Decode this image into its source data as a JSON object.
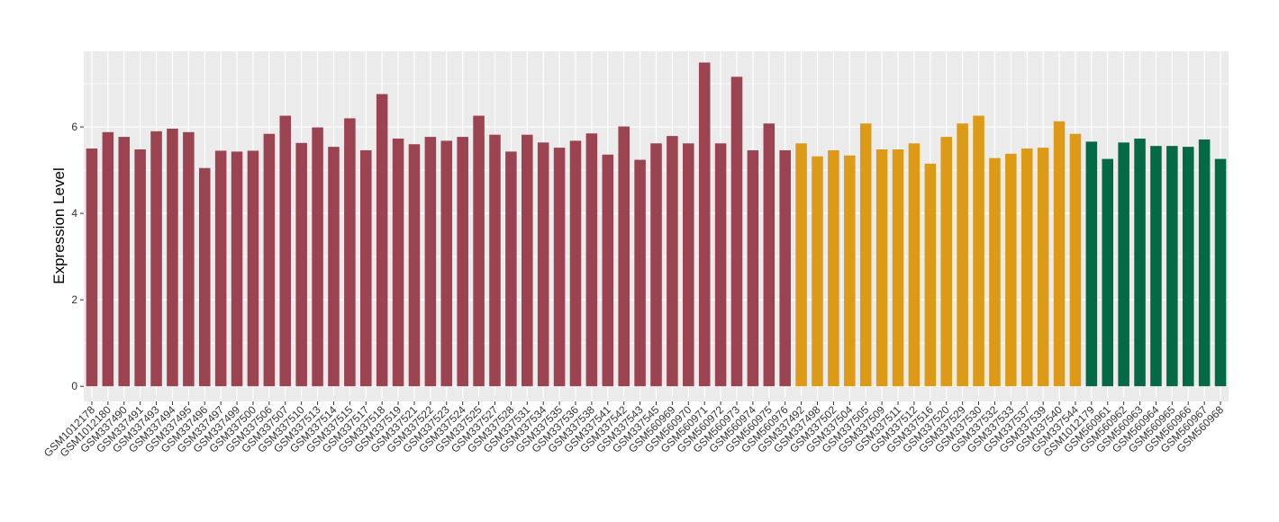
{
  "chart_data": {
    "type": "bar",
    "title": "",
    "xlabel": "",
    "ylabel": "Expression Level",
    "ylim": [
      -0.35,
      7.75
    ],
    "yticks": [
      0,
      2,
      4,
      6
    ],
    "grid": true,
    "legend": "none",
    "background_color": "#ebebeb",
    "grid_color": "#ffffff",
    "group_colors": [
      "#9b4350",
      "#dc9a16",
      "#046a45"
    ],
    "categories": [
      "GSM1012178",
      "GSM1012180",
      "GSM337490",
      "GSM337491",
      "GSM337493",
      "GSM337494",
      "GSM337495",
      "GSM337496",
      "GSM337497",
      "GSM337499",
      "GSM337500",
      "GSM337506",
      "GSM337507",
      "GSM337510",
      "GSM337513",
      "GSM337514",
      "GSM337515",
      "GSM337517",
      "GSM337518",
      "GSM337519",
      "GSM337521",
      "GSM337522",
      "GSM337523",
      "GSM337524",
      "GSM337525",
      "GSM337527",
      "GSM337528",
      "GSM337531",
      "GSM337534",
      "GSM337535",
      "GSM337536",
      "GSM337538",
      "GSM337541",
      "GSM337542",
      "GSM337543",
      "GSM337545",
      "GSM560969",
      "GSM560970",
      "GSM560971",
      "GSM560972",
      "GSM560973",
      "GSM560974",
      "GSM560975",
      "GSM560976",
      "GSM337492",
      "GSM337498",
      "GSM337502",
      "GSM337504",
      "GSM337505",
      "GSM337509",
      "GSM337511",
      "GSM337512",
      "GSM337516",
      "GSM337520",
      "GSM337529",
      "GSM337530",
      "GSM337532",
      "GSM337533",
      "GSM337537",
      "GSM337539",
      "GSM337540",
      "GSM337544",
      "GSM1012179",
      "GSM560961",
      "GSM560962",
      "GSM560963",
      "GSM560964",
      "GSM560965",
      "GSM560966",
      "GSM560967",
      "GSM560968"
    ],
    "values": [
      5.5,
      5.88,
      5.77,
      5.48,
      5.9,
      5.96,
      5.88,
      5.05,
      5.45,
      5.43,
      5.45,
      5.84,
      6.26,
      5.63,
      5.99,
      5.54,
      6.2,
      5.46,
      6.76,
      5.73,
      5.6,
      5.77,
      5.68,
      5.77,
      6.26,
      5.82,
      5.43,
      5.82,
      5.64,
      5.52,
      5.68,
      5.85,
      5.36,
      6.01,
      5.24,
      5.62,
      5.79,
      5.62,
      7.49,
      5.62,
      7.16,
      5.46,
      6.08,
      5.46,
      5.62,
      5.32,
      5.46,
      5.34,
      6.08,
      5.48,
      5.48,
      5.62,
      5.15,
      5.77,
      6.08,
      6.26,
      5.28,
      5.38,
      5.5,
      5.52,
      6.13,
      5.84,
      5.66,
      5.26,
      5.64,
      5.73,
      5.56,
      5.56,
      5.54,
      5.71,
      5.26
    ],
    "groups": [
      0,
      0,
      0,
      0,
      0,
      0,
      0,
      0,
      0,
      0,
      0,
      0,
      0,
      0,
      0,
      0,
      0,
      0,
      0,
      0,
      0,
      0,
      0,
      0,
      0,
      0,
      0,
      0,
      0,
      0,
      0,
      0,
      0,
      0,
      0,
      0,
      0,
      0,
      0,
      0,
      0,
      0,
      0,
      0,
      1,
      1,
      1,
      1,
      1,
      1,
      1,
      1,
      1,
      1,
      1,
      1,
      1,
      1,
      1,
      1,
      1,
      1,
      2,
      2,
      2,
      2,
      2,
      2,
      2,
      2,
      2
    ]
  }
}
